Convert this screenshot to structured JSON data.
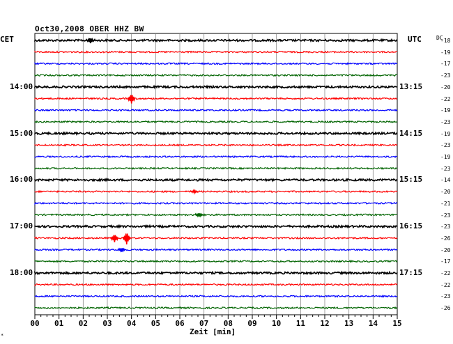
{
  "title": "Oct30,2008   OBER HHZ BW",
  "left_axis_label": "CET",
  "right_axis_label": "UTC",
  "dc_label": "DC",
  "x_axis_label": "Zeit [min]",
  "corner_mark": "*",
  "x_ticks": [
    "00",
    "01",
    "02",
    "03",
    "04",
    "05",
    "06",
    "07",
    "08",
    "09",
    "10",
    "11",
    "12",
    "13",
    "14",
    "15"
  ],
  "left_time_labels": [
    {
      "trace": 4,
      "text": "14:00"
    },
    {
      "trace": 8,
      "text": "15:00"
    },
    {
      "trace": 12,
      "text": "16:00"
    },
    {
      "trace": 16,
      "text": "17:00"
    },
    {
      "trace": 20,
      "text": "18:00"
    }
  ],
  "right_time_labels": [
    {
      "trace": 4,
      "text": "13:15"
    },
    {
      "trace": 8,
      "text": "14:15"
    },
    {
      "trace": 12,
      "text": "15:15"
    },
    {
      "trace": 16,
      "text": "16:15"
    },
    {
      "trace": 20,
      "text": "17:15"
    }
  ],
  "dc_values": [
    "-18",
    "-19",
    "-17",
    "-23",
    "-20",
    "-22",
    "-19",
    "-23",
    "-19",
    "-23",
    "-19",
    "-23",
    "-14",
    "-20",
    "-21",
    "-23",
    "-23",
    "-26",
    "-20",
    "-17",
    "-22",
    "-22",
    "-23",
    "-26"
  ],
  "trace_colors": [
    "#000000",
    "#ff0000",
    "#0000ff",
    "#006400"
  ],
  "events": [
    {
      "trace": 0,
      "minute": 2.3,
      "amplitude": 4
    },
    {
      "trace": 5,
      "minute": 4.0,
      "amplitude": 7
    },
    {
      "trace": 17,
      "minute": 3.3,
      "amplitude": 6
    },
    {
      "trace": 17,
      "minute": 3.8,
      "amplitude": 9
    },
    {
      "trace": 18,
      "minute": 3.6,
      "amplitude": 3
    },
    {
      "trace": 15,
      "minute": 6.8,
      "amplitude": 3
    },
    {
      "trace": 13,
      "minute": 6.6,
      "amplitude": 2
    }
  ]
}
